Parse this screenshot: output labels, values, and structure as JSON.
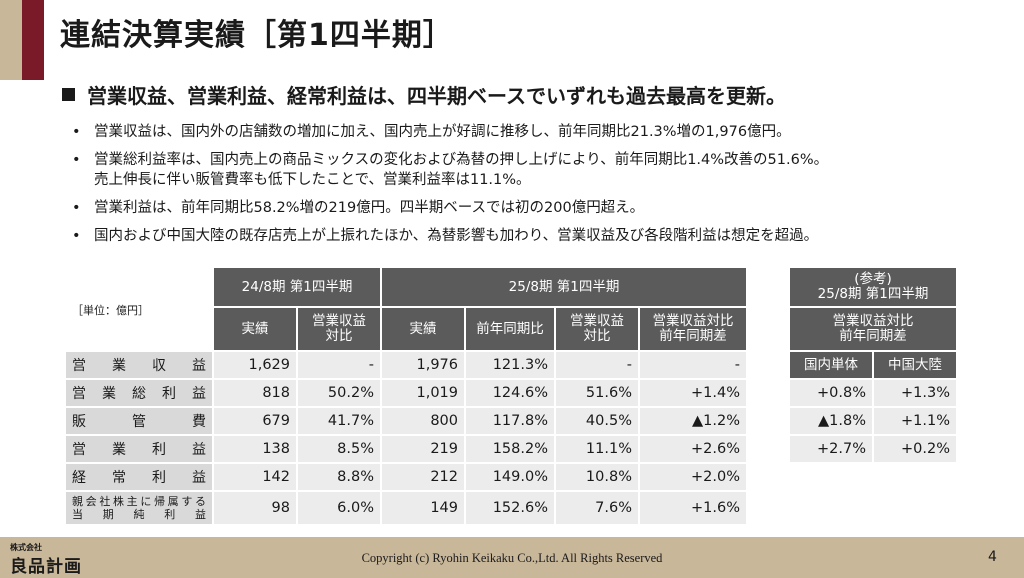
{
  "title": "連結決算実績［第1四半期］",
  "headline": "営業収益、営業利益、経常利益は、四半期ベースでいずれも過去最高を更新。",
  "bullets": [
    "営業収益は、国内外の店舗数の増加に加え、国内売上が好調に推移し、前年同期比21.3%増の1,976億円。",
    "営業総利益率は、国内売上の商品ミックスの変化および為替の押し上げにより、前年同期比1.4%改善の51.6%。",
    "売上伸長に伴い販管費率も低下したことで、営業利益率は11.1%。",
    "営業利益は、前年同期比58.2%増の219億円。四半期ベースでは初の200億円超え。",
    "国内および中国大陸の既存店売上が上振れたほか、為替影響も加わり、営業収益及び各段階利益は想定を超過。"
  ],
  "table": {
    "unit": "［単位：億円］",
    "period_prev": "24/8期 第1四半期",
    "period_curr": "25/8期 第1四半期",
    "col_actual": "実績",
    "col_ratio_l1": "営業収益",
    "col_ratio_l2": "対比",
    "col_yoy": "前年同期比",
    "col_diff_l1": "営業収益対比",
    "col_diff_l2": "前年同期差",
    "rows": [
      {
        "label": "営業収益",
        "prev_actual": "1,629",
        "prev_ratio": "-",
        "curr_actual": "1,976",
        "yoy": "121.3%",
        "curr_ratio": "-",
        "diff": "-"
      },
      {
        "label": "営業総利益",
        "prev_actual": "818",
        "prev_ratio": "50.2%",
        "curr_actual": "1,019",
        "yoy": "124.6%",
        "curr_ratio": "51.6%",
        "diff": "+1.4%"
      },
      {
        "label": "販管費",
        "prev_actual": "679",
        "prev_ratio": "41.7%",
        "curr_actual": "800",
        "yoy": "117.8%",
        "curr_ratio": "40.5%",
        "diff": "▲1.2%"
      },
      {
        "label": "営業利益",
        "prev_actual": "138",
        "prev_ratio": "8.5%",
        "curr_actual": "219",
        "yoy": "158.2%",
        "curr_ratio": "11.1%",
        "diff": "+2.6%"
      },
      {
        "label": "経常利益",
        "prev_actual": "142",
        "prev_ratio": "8.8%",
        "curr_actual": "212",
        "yoy": "149.0%",
        "curr_ratio": "10.8%",
        "diff": "+2.0%"
      },
      {
        "label_l1": "親会社株主に帰属する",
        "label_l2": "当期純利益",
        "prev_actual": "98",
        "prev_ratio": "6.0%",
        "curr_actual": "149",
        "yoy": "152.6%",
        "curr_ratio": "7.6%",
        "diff": "+1.6%"
      }
    ]
  },
  "ref_table": {
    "title_l1": "(参考)",
    "title_l2": "25/8期 第1四半期",
    "sub_l1": "営業収益対比",
    "sub_l2": "前年同期差",
    "col_domestic": "国内単体",
    "col_china": "中国大陸",
    "rows": [
      {
        "domestic": "+0.8%",
        "china": "+1.3%"
      },
      {
        "domestic": "▲1.8%",
        "china": "+1.1%"
      },
      {
        "domestic": "+2.7%",
        "china": "+0.2%"
      }
    ]
  },
  "footer": {
    "company_small": "株式会社",
    "company": "良品計画",
    "copyright": "Copyright (c) Ryohin Keikaku Co.,Ltd. All Rights Reserved",
    "page": "4"
  },
  "colors": {
    "accent_red": "#7a1a28",
    "beige": "#c9b79a",
    "header_gray": "#5b5b5b",
    "label_gray": "#d9d9d9",
    "cell_gray": "#ececec"
  }
}
